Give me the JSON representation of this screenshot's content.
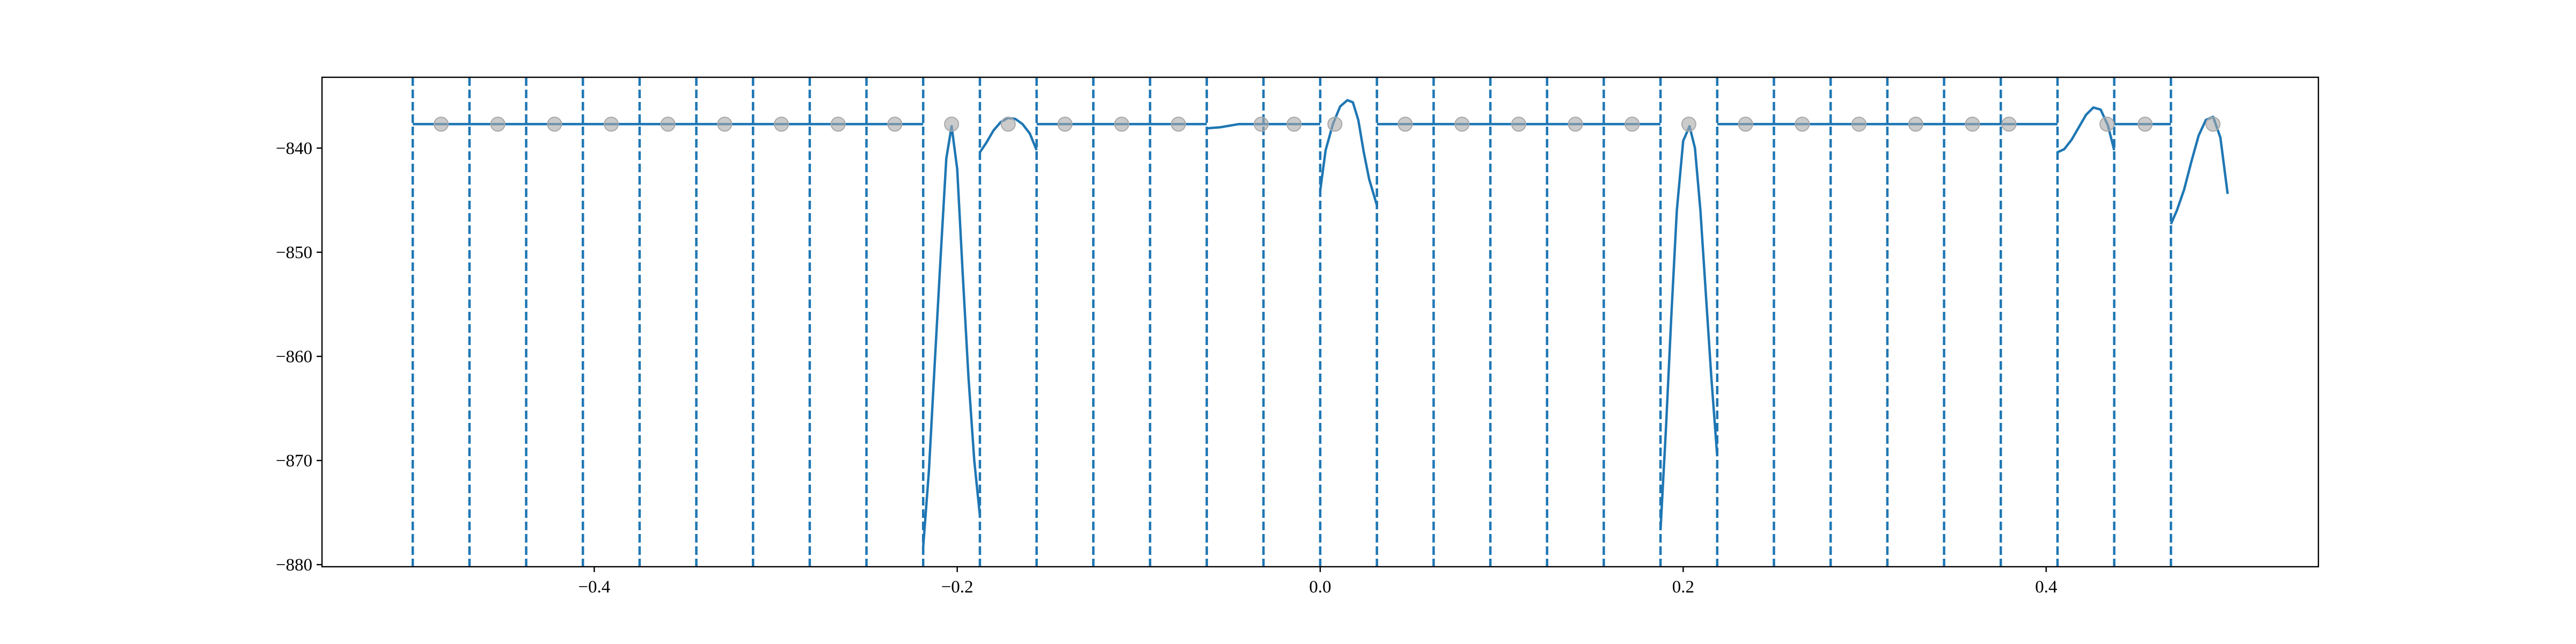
{
  "chart_data": {
    "type": "line",
    "title": "",
    "xlabel": "",
    "ylabel": "",
    "xlim": [
      -0.55,
      0.55
    ],
    "ylim": [
      -880.2,
      -833.2
    ],
    "grid": false,
    "x_ticks": [
      {
        "value": -0.4,
        "label": "−0.4"
      },
      {
        "value": -0.2,
        "label": "−0.2"
      },
      {
        "value": 0.0,
        "label": "0.0"
      },
      {
        "value": 0.2,
        "label": "0.2"
      },
      {
        "value": 0.4,
        "label": "0.4"
      }
    ],
    "y_ticks": [
      {
        "value": -840,
        "label": "−840"
      },
      {
        "value": -850,
        "label": "−850"
      },
      {
        "value": -860,
        "label": "−860"
      },
      {
        "value": -870,
        "label": "−870"
      },
      {
        "value": -880,
        "label": "−880"
      }
    ],
    "colors": {
      "line": "#1f77b4",
      "markers": "#a9a9a9",
      "axes": "#000000"
    },
    "baseline": -837.7,
    "vertical_lines": {
      "style": "dashed",
      "x": [
        -0.5,
        -0.46875,
        -0.4375,
        -0.40625,
        -0.375,
        -0.34375,
        -0.3125,
        -0.28125,
        -0.25,
        -0.21875,
        -0.1875,
        -0.15625,
        -0.125,
        -0.09375,
        -0.0625,
        -0.03125,
        0.0,
        0.03125,
        0.0625,
        0.09375,
        0.125,
        0.15625,
        0.1875,
        0.21875,
        0.25,
        0.28125,
        0.3125,
        0.34375,
        0.375,
        0.40625,
        0.4375,
        0.46875
      ]
    },
    "series": [
      {
        "type": "line",
        "segments": [
          [
            [
              -0.5,
              -837.7
            ],
            [
              -0.21875,
              -837.7
            ]
          ],
          [
            [
              -0.21875,
              -878.3
            ],
            [
              -0.2156,
              -871.0
            ],
            [
              -0.2125,
              -861.0
            ],
            [
              -0.209,
              -850.0
            ],
            [
              -0.206,
              -841.0
            ],
            [
              -0.2031,
              -837.9
            ],
            [
              -0.2,
              -842.0
            ],
            [
              -0.197,
              -852.0
            ],
            [
              -0.1938,
              -862.0
            ],
            [
              -0.1906,
              -870.0
            ],
            [
              -0.1875,
              -875.3
            ]
          ],
          [
            [
              -0.1875,
              -840.4
            ],
            [
              -0.184,
              -839.5
            ],
            [
              -0.18,
              -838.3
            ],
            [
              -0.176,
              -837.5
            ],
            [
              -0.172,
              -837.1
            ],
            [
              -0.168,
              -837.2
            ],
            [
              -0.164,
              -837.7
            ],
            [
              -0.16,
              -838.6
            ],
            [
              -0.15625,
              -840.2
            ]
          ],
          [
            [
              -0.15625,
              -837.7
            ],
            [
              -0.0625,
              -837.7
            ]
          ],
          [
            [
              -0.0625,
              -838.1
            ],
            [
              -0.055,
              -838.0
            ],
            [
              -0.045,
              -837.7
            ],
            [
              -0.035,
              -837.7
            ],
            [
              -0.03125,
              -837.7
            ],
            [
              0.0,
              -837.7
            ]
          ],
          [
            [
              0.0,
              -844.1
            ],
            [
              0.003,
              -840.2
            ],
            [
              0.007,
              -837.7
            ],
            [
              0.011,
              -836.0
            ],
            [
              0.015,
              -835.4
            ],
            [
              0.018,
              -835.6
            ],
            [
              0.021,
              -837.3
            ],
            [
              0.024,
              -840.4
            ],
            [
              0.027,
              -843.0
            ],
            [
              0.03125,
              -845.5
            ]
          ],
          [
            [
              0.03125,
              -837.7
            ],
            [
              0.1875,
              -837.7
            ]
          ],
          [
            [
              0.1875,
              -876.7
            ],
            [
              0.1905,
              -867.0
            ],
            [
              0.1935,
              -856.0
            ],
            [
              0.1965,
              -846.0
            ],
            [
              0.2,
              -839.3
            ],
            [
              0.2035,
              -837.9
            ],
            [
              0.2065,
              -840.0
            ],
            [
              0.2095,
              -846.0
            ],
            [
              0.2125,
              -854.0
            ],
            [
              0.2155,
              -862.0
            ],
            [
              0.21875,
              -869.6
            ]
          ],
          [
            [
              0.21875,
              -837.7
            ],
            [
              0.40625,
              -837.7
            ]
          ],
          [
            [
              0.40625,
              -840.4
            ],
            [
              0.41,
              -840.1
            ],
            [
              0.414,
              -839.2
            ],
            [
              0.418,
              -838.0
            ],
            [
              0.422,
              -836.8
            ],
            [
              0.426,
              -836.1
            ],
            [
              0.43,
              -836.3
            ],
            [
              0.434,
              -837.8
            ],
            [
              0.4375,
              -840.2
            ]
          ],
          [
            [
              0.4375,
              -837.7
            ],
            [
              0.46875,
              -837.7
            ]
          ],
          [
            [
              0.46875,
              -847.3
            ],
            [
              0.472,
              -846.0
            ],
            [
              0.476,
              -844.0
            ],
            [
              0.48,
              -841.3
            ],
            [
              0.484,
              -838.8
            ],
            [
              0.488,
              -837.3
            ],
            [
              0.492,
              -837.0
            ],
            [
              0.496,
              -839.0
            ],
            [
              0.5,
              -844.4
            ]
          ]
        ]
      },
      {
        "type": "scatter",
        "x": [
          -0.484375,
          -0.453125,
          -0.421875,
          -0.390625,
          -0.359375,
          -0.328125,
          -0.296875,
          -0.265625,
          -0.234375,
          -0.2031,
          -0.1719,
          -0.140625,
          -0.109375,
          -0.078125,
          -0.0325,
          -0.0144,
          0.0081,
          0.046875,
          0.078125,
          0.109375,
          0.140625,
          0.171875,
          0.2031,
          0.234375,
          0.265625,
          0.296875,
          0.328125,
          0.359375,
          0.3795,
          0.4335,
          0.4545,
          0.4919
        ],
        "y": [
          -837.7,
          -837.7,
          -837.7,
          -837.7,
          -837.7,
          -837.7,
          -837.7,
          -837.7,
          -837.7,
          -837.7,
          -837.7,
          -837.7,
          -837.7,
          -837.7,
          -837.7,
          -837.7,
          -837.7,
          -837.7,
          -837.7,
          -837.7,
          -837.7,
          -837.7,
          -837.7,
          -837.7,
          -837.7,
          -837.7,
          -837.7,
          -837.7,
          -837.7,
          -837.7,
          -837.7,
          -837.7
        ]
      }
    ]
  }
}
